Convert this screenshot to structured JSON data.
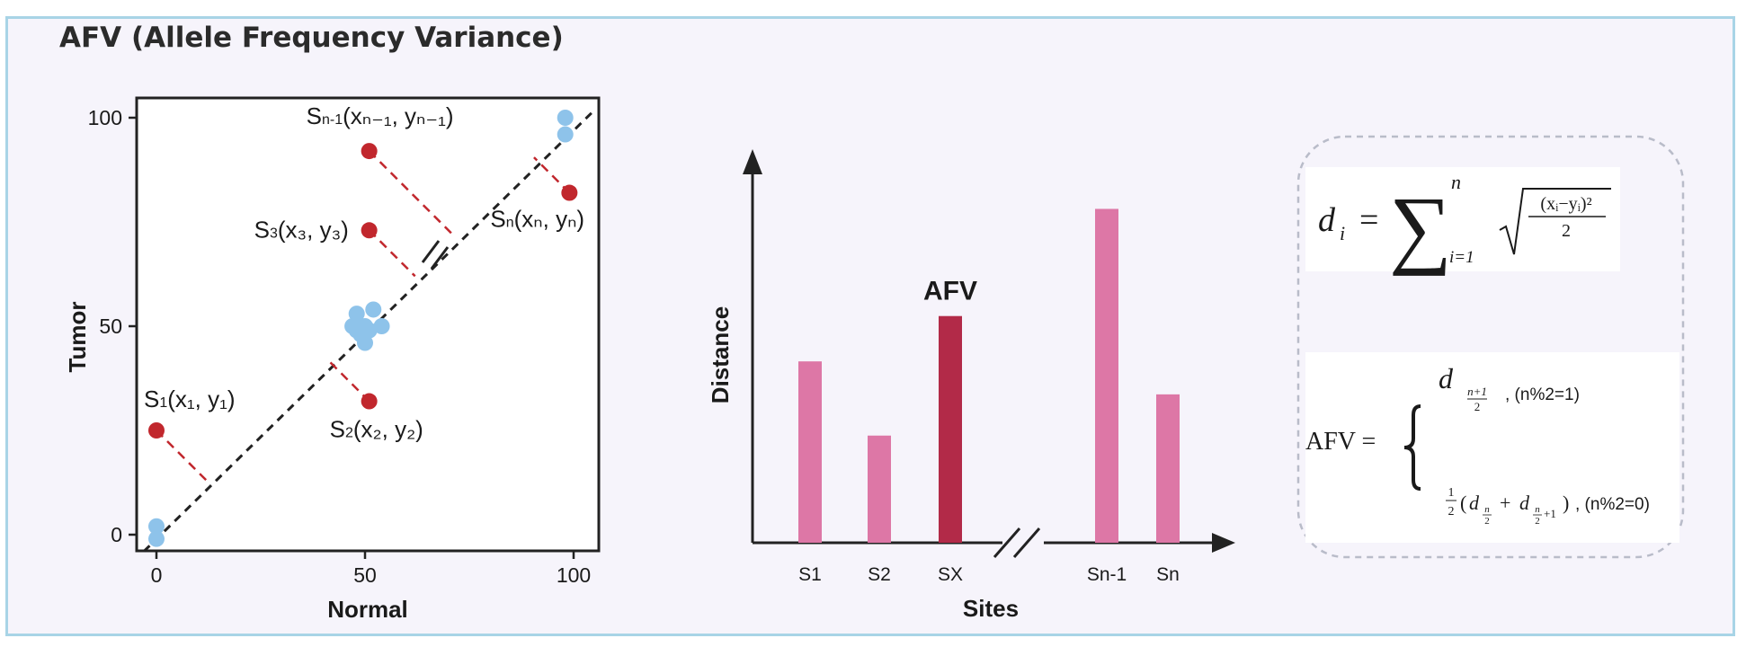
{
  "title": "AFV (Allele Frequency Variance)",
  "colors": {
    "blue_dot": "#8ec3ea",
    "red_dot": "#c1272d",
    "pink_bar": "#dd77a6",
    "afv_bar": "#b22a48",
    "panel_bg": "#f6f4fb",
    "frame_border": "#a8d4e6"
  },
  "chart_data": [
    {
      "type": "scatter",
      "xlabel": "Normal",
      "ylabel": "Tumor",
      "xlim": [
        0,
        100
      ],
      "ylim": [
        0,
        100
      ],
      "xticks": [
        "0",
        "50",
        "100"
      ],
      "yticks": [
        "0",
        "50",
        "100"
      ],
      "diagonal": "y = x dashed",
      "blue_points": [
        {
          "x": 0,
          "y": 2
        },
        {
          "x": 0,
          "y": -1
        },
        {
          "x": 47,
          "y": 50
        },
        {
          "x": 48,
          "y": 53
        },
        {
          "x": 49,
          "y": 48
        },
        {
          "x": 50,
          "y": 50
        },
        {
          "x": 50,
          "y": 46
        },
        {
          "x": 51,
          "y": 49
        },
        {
          "x": 52,
          "y": 54
        },
        {
          "x": 54,
          "y": 50
        },
        {
          "x": 48,
          "y": 49
        },
        {
          "x": 98,
          "y": 100
        },
        {
          "x": 98,
          "y": 96
        }
      ],
      "labeled_points": [
        {
          "x": 0,
          "y": 25,
          "name": "S",
          "sub": "1",
          "coord": "(x₁, y₁)"
        },
        {
          "x": 51,
          "y": 32,
          "name": "S",
          "sub": "2",
          "coord": "(x₂, y₂)"
        },
        {
          "x": 51,
          "y": 73,
          "name": "S",
          "sub": "3",
          "coord": "(x₃, y₃)"
        },
        {
          "x": 51,
          "y": 92,
          "name": "S",
          "sub": "n-1",
          "coord": "(xₙ₋₁, yₙ₋₁)"
        },
        {
          "x": 99,
          "y": 82,
          "name": "S",
          "sub": "n",
          "coord": "(xₙ, yₙ)"
        }
      ]
    },
    {
      "type": "bar",
      "xlabel": "Sites",
      "ylabel": "Distance",
      "categories": [
        "S1",
        "S2",
        "SX",
        "Sn-1",
        "Sn"
      ],
      "values": [
        44,
        26,
        55,
        81,
        36
      ],
      "ylim": [
        0,
        92
      ],
      "highlight": {
        "category": "SX",
        "label": "AFV"
      },
      "axis_break_after": "SX"
    }
  ],
  "formulas": {
    "distance": {
      "lhs": "d",
      "lhs_sub": "i",
      "equals": "=",
      "sum_symbol": "∑",
      "sum_upper": "n",
      "sum_lower": "i=1",
      "radicand_num": "(xᵢ−yᵢ)²",
      "radicand_den": "2"
    },
    "afv": {
      "lhs": "AFV =",
      "odd_term": "d",
      "odd_sub_num": "n+1",
      "odd_sub_den": "2",
      "odd_condition": ", (n%2=1)",
      "even_half_num": "1",
      "even_half_den": "2",
      "even_open": "(",
      "even_d1": "d",
      "even_d1_sub_num": "n",
      "even_d1_sub_den": "2",
      "even_plus": "+",
      "even_d2": "d",
      "even_d2_sub_num": "n",
      "even_d2_sub_den": "2",
      "even_d2_sub_plus": "+1",
      "even_close": ")",
      "even_condition": ", (n%2=0)"
    }
  }
}
